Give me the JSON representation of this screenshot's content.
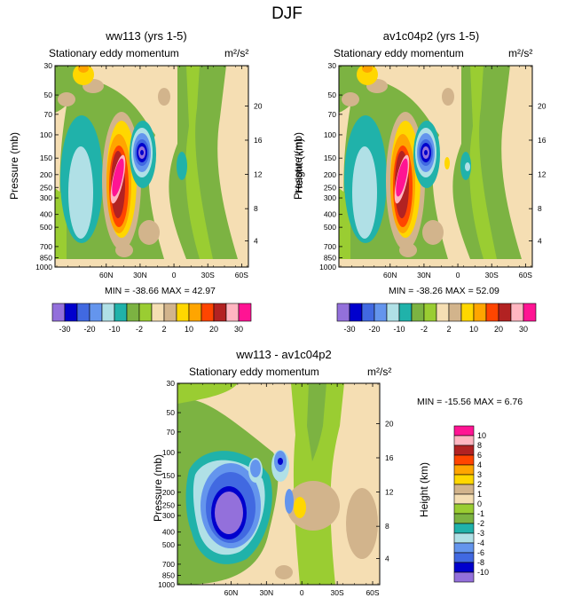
{
  "title": "DJF",
  "colors": {
    "-30": "#9370db",
    "-20a": "#0000cd",
    "-20": "#4169e1",
    "-15": "#6495ed",
    "-10a": "#b0e0e6",
    "-10": "#20b2aa",
    "-5": "#7cb342",
    "-2": "#9acd32",
    "2": "#f5deb3",
    "5": "#d2b48c",
    "10": "#ffd700",
    "15": "#ffa500",
    "20": "#ff4500",
    "25": "#b22222",
    "30": "#ffb6c1",
    "30b": "#ff1493"
  },
  "panels": [
    {
      "title": "ww113 (yrs 1-5)",
      "subtitle": "Stationary eddy momentum",
      "units": "m²/s²",
      "stats": "MIN = -38.66   MAX =  42.97"
    },
    {
      "title": "av1c04p2 (yrs 1-5)",
      "subtitle": "Stationary eddy momentum",
      "units": "m²/s²",
      "stats": "MIN = -38.26   MAX =  52.09"
    },
    {
      "title": "ww113 - av1c04p2",
      "subtitle": "Stationary eddy momentum",
      "units": "m²/s²",
      "stats": "MIN = -15.56   MAX =    6.76"
    }
  ],
  "axes": {
    "ylabel": "Pressure (mb)",
    "ylabel_right": "Height (km)",
    "pressure_ticks": [
      "30",
      "50",
      "70",
      "100",
      "150",
      "200",
      "250",
      "300",
      "400",
      "500",
      "700",
      "850",
      "1000"
    ],
    "height_ticks": [
      "20",
      "16",
      "12",
      "8",
      "4"
    ],
    "lat_ticks": [
      "60N",
      "30N",
      "0",
      "30S",
      "60S"
    ]
  },
  "colorbar_h": {
    "labels": [
      "-30",
      "-20",
      "-10",
      "-2",
      "2",
      "10",
      "20",
      "30"
    ]
  },
  "colorbar_v": {
    "labels": [
      "10",
      "8",
      "6",
      "4",
      "3",
      "2",
      "1",
      "0",
      "-1",
      "-2",
      "-3",
      "-4",
      "-6",
      "-8",
      "-10"
    ]
  },
  "chart_data": [
    {
      "type": "heatmap",
      "title": "ww113 (yrs 1-5)",
      "subtitle": "Stationary eddy momentum",
      "xlabel": "",
      "ylabel": "Pressure (mb)",
      "x": [
        "60N",
        "30N",
        "0",
        "30S",
        "60S"
      ],
      "levels": [
        -30,
        -25,
        -20,
        -15,
        -10,
        -5,
        -2,
        2,
        5,
        10,
        15,
        20,
        25,
        30
      ],
      "min": -38.66,
      "max": 42.97,
      "features": [
        {
          "name": "negative core",
          "lat": "~-5 (near equator)",
          "pressure_mb": 150,
          "value": -30
        },
        {
          "name": "positive core",
          "lat": "~20N",
          "pressure_mb": 200,
          "value": 30
        },
        {
          "name": "negative band",
          "lat": "~65N",
          "pressure_mb": 250,
          "value": -10
        }
      ]
    },
    {
      "type": "heatmap",
      "title": "av1c04p2 (yrs 1-5)",
      "subtitle": "Stationary eddy momentum",
      "ylabel": "Pressure (mb)",
      "x": [
        "60N",
        "30N",
        "0",
        "30S",
        "60S"
      ],
      "levels": [
        -30,
        -25,
        -20,
        -15,
        -10,
        -5,
        -2,
        2,
        5,
        10,
        15,
        20,
        25,
        30
      ],
      "min": -38.26,
      "max": 52.09,
      "features": [
        {
          "name": "negative core",
          "lat": "~5N",
          "pressure_mb": 150,
          "value": -30
        },
        {
          "name": "positive core",
          "lat": "~25N",
          "pressure_mb": 200,
          "value": 30
        },
        {
          "name": "negative band",
          "lat": "~65N",
          "pressure_mb": 250,
          "value": -10
        }
      ]
    },
    {
      "type": "heatmap",
      "title": "ww113 - av1c04p2",
      "subtitle": "Stationary eddy momentum",
      "ylabel": "Pressure (mb)",
      "x": [
        "60N",
        "30N",
        "0",
        "30S",
        "60S"
      ],
      "levels": [
        -10,
        -8,
        -6,
        -4,
        -3,
        -2,
        -1,
        0,
        1,
        2,
        3,
        4,
        6,
        8,
        10
      ],
      "min": -15.56,
      "max": 6.76,
      "features": [
        {
          "name": "negative core",
          "lat": "~40N",
          "pressure_mb": 280,
          "value": -10
        },
        {
          "name": "negative spot",
          "lat": "~10N",
          "pressure_mb": 100,
          "value": -10
        },
        {
          "name": "positive spot",
          "lat": "~30S",
          "pressure_mb": 220,
          "value": 3
        }
      ]
    }
  ]
}
